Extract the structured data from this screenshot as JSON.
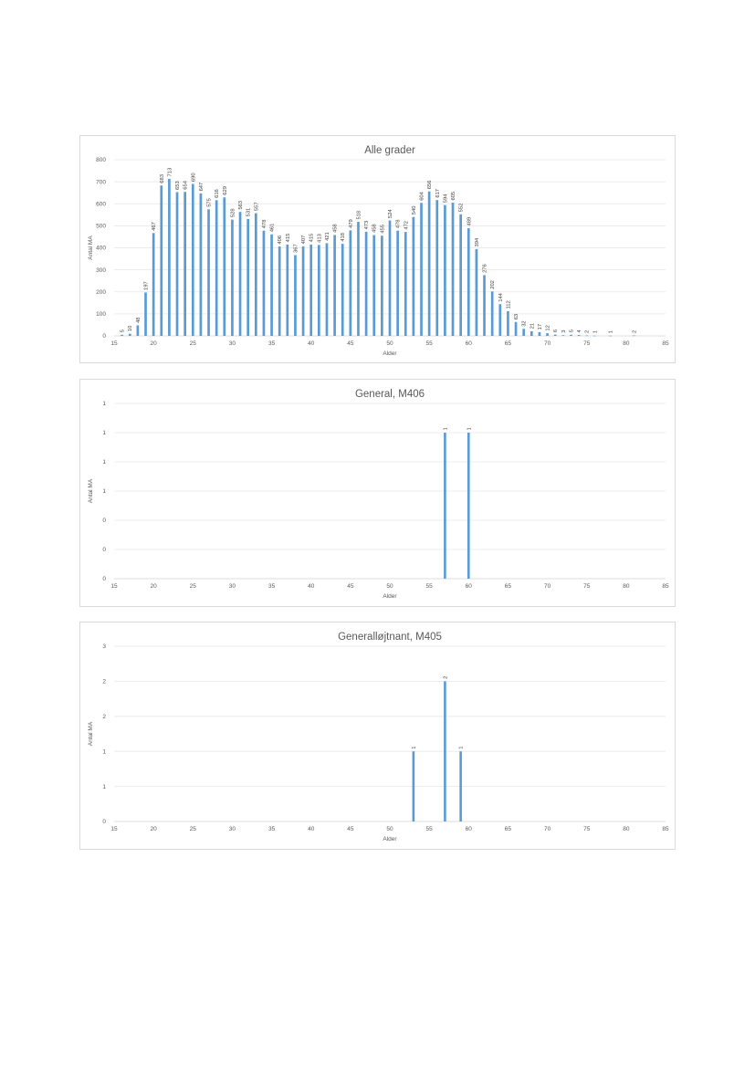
{
  "colors": {
    "bar": "#5b9bd5",
    "grid": "#e6e6e6",
    "text": "#595959"
  },
  "chart_data": [
    {
      "type": "bar",
      "title": "Alle grader",
      "xlabel": "Alder",
      "ylabel": "Antal MA",
      "xlim": [
        15,
        85
      ],
      "xticks": [
        "15",
        "20",
        "25",
        "30",
        "35",
        "40",
        "45",
        "50",
        "55",
        "60",
        "65",
        "70",
        "75",
        "80",
        "85"
      ],
      "ylim": [
        0,
        800
      ],
      "yticks": [
        "0",
        "100",
        "200",
        "300",
        "400",
        "500",
        "600",
        "700",
        "800"
      ],
      "grid": true,
      "legend": "none",
      "x": [
        16,
        17,
        18,
        19,
        20,
        21,
        22,
        23,
        24,
        25,
        26,
        27,
        28,
        29,
        30,
        31,
        32,
        33,
        34,
        35,
        36,
        37,
        38,
        39,
        40,
        41,
        42,
        43,
        44,
        45,
        46,
        47,
        48,
        49,
        50,
        51,
        52,
        53,
        54,
        55,
        56,
        57,
        58,
        59,
        60,
        61,
        62,
        63,
        64,
        65,
        66,
        67,
        68,
        69,
        70,
        71,
        72,
        73,
        74,
        75,
        76,
        78,
        81
      ],
      "values": [
        5,
        10,
        48,
        197,
        467,
        683,
        713,
        653,
        654,
        690,
        647,
        575,
        616,
        629,
        528,
        563,
        531,
        557,
        478,
        461,
        406,
        415,
        367,
        407,
        415,
        413,
        421,
        458,
        418,
        479,
        518,
        473,
        458,
        455,
        524,
        478,
        472,
        540,
        604,
        656,
        617,
        594,
        605,
        552,
        489,
        394,
        276,
        202,
        144,
        112,
        63,
        32,
        21,
        17,
        12,
        6,
        3,
        5,
        4,
        2,
        1,
        1,
        2
      ]
    },
    {
      "type": "bar",
      "title": "General, M406",
      "xlabel": "Alder",
      "ylabel": "Antal MA",
      "xlim": [
        15,
        85
      ],
      "xticks": [
        "15",
        "20",
        "25",
        "30",
        "35",
        "40",
        "45",
        "50",
        "55",
        "60",
        "65",
        "70",
        "75",
        "80",
        "85"
      ],
      "ylim": [
        0,
        1.2
      ],
      "yticks": [
        "0",
        "0",
        "0",
        "1",
        "1",
        "1",
        "1"
      ],
      "grid": true,
      "legend": "none",
      "x": [
        57,
        60
      ],
      "values": [
        1,
        1
      ]
    },
    {
      "type": "bar",
      "title": "Generalløjtnant, M405",
      "xlabel": "Alder",
      "ylabel": "Antal MA",
      "xlim": [
        15,
        85
      ],
      "xticks": [
        "15",
        "20",
        "25",
        "30",
        "35",
        "40",
        "45",
        "50",
        "55",
        "60",
        "65",
        "70",
        "75",
        "80",
        "85"
      ],
      "ylim": [
        0,
        2.5
      ],
      "yticks": [
        "0",
        "1",
        "1",
        "2",
        "2",
        "3"
      ],
      "grid": true,
      "legend": "none",
      "x": [
        53,
        57,
        59
      ],
      "values": [
        1,
        2,
        1
      ]
    }
  ]
}
